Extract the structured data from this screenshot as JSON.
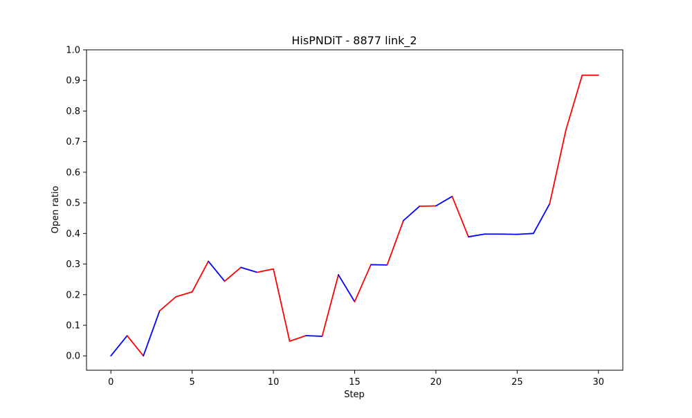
{
  "chart_data": {
    "type": "line",
    "title": "HisPNDiT - 8877 link_2",
    "xlabel": "Step",
    "ylabel": "Open ratio",
    "xlim": [
      -1.5,
      31.5
    ],
    "ylim": [
      -0.047,
      1.0
    ],
    "xticks": [
      0,
      5,
      10,
      15,
      20,
      25,
      30
    ],
    "yticks": [
      0.0,
      0.1,
      0.2,
      0.3,
      0.4,
      0.5,
      0.6,
      0.7,
      0.8,
      0.9,
      1.0
    ],
    "ytick_labels": [
      "0.0",
      "0.1",
      "0.2",
      "0.3",
      "0.4",
      "0.5",
      "0.6",
      "0.7",
      "0.8",
      "0.9",
      "1.0"
    ],
    "grid": false,
    "segment_colors": {
      "increase_blue": "#0000ff",
      "decrease_or_red": "#ff0000"
    },
    "x": [
      0,
      1,
      2,
      3,
      4,
      5,
      6,
      7,
      8,
      9,
      10,
      11,
      12,
      13,
      14,
      15,
      16,
      17,
      18,
      19,
      20,
      21,
      22,
      23,
      24,
      25,
      26,
      27,
      28,
      29,
      30
    ],
    "y": [
      0.0,
      0.066,
      0.0,
      0.147,
      0.193,
      0.209,
      0.309,
      0.244,
      0.289,
      0.273,
      0.284,
      0.048,
      0.066,
      0.064,
      0.265,
      0.177,
      0.298,
      0.297,
      0.442,
      0.489,
      0.49,
      0.521,
      0.389,
      0.398,
      0.398,
      0.397,
      0.4,
      0.497,
      0.738,
      0.917,
      0.917
    ],
    "segment_color_keys": [
      "blue",
      "red",
      "blue",
      "red",
      "red",
      "red",
      "blue",
      "red",
      "blue",
      "red",
      "red",
      "red",
      "blue",
      "red",
      "blue",
      "red",
      "blue",
      "red",
      "blue",
      "red",
      "blue",
      "red",
      "blue",
      "blue",
      "blue",
      "blue",
      "blue",
      "red",
      "red",
      "red"
    ]
  }
}
